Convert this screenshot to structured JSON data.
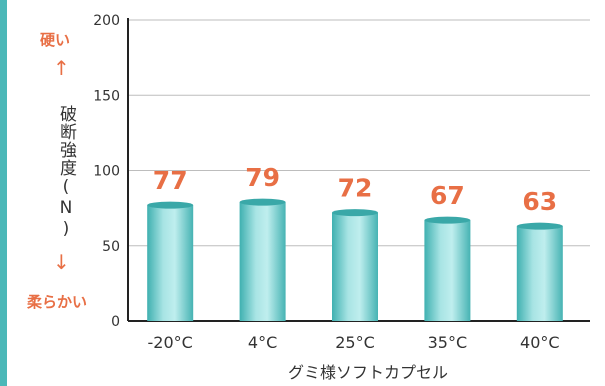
{
  "chart_data": {
    "type": "bar",
    "categories": [
      "-20°C",
      "4°C",
      "25°C",
      "35°C",
      "40°C"
    ],
    "values": [
      77,
      79,
      72,
      67,
      63
    ],
    "data_labels": [
      "77",
      "79",
      "72",
      "67",
      "63"
    ],
    "title": "",
    "xlabel": "グミ様ソフトカプセル",
    "ylabel": "破断強度(N)",
    "ylim": [
      0,
      200
    ],
    "yticks": [
      "0",
      "50",
      "100",
      "150",
      "200"
    ],
    "grid": true,
    "annotations": {
      "top": "硬い",
      "bottom": "柔らかい",
      "up_arrow": "↑",
      "down_arrow": "↓"
    },
    "colors": {
      "bar": "#7fd3d3",
      "bar_top": "#3aa8a8",
      "label": "#e86f45",
      "accent_rule": "#4bb8b8"
    }
  }
}
